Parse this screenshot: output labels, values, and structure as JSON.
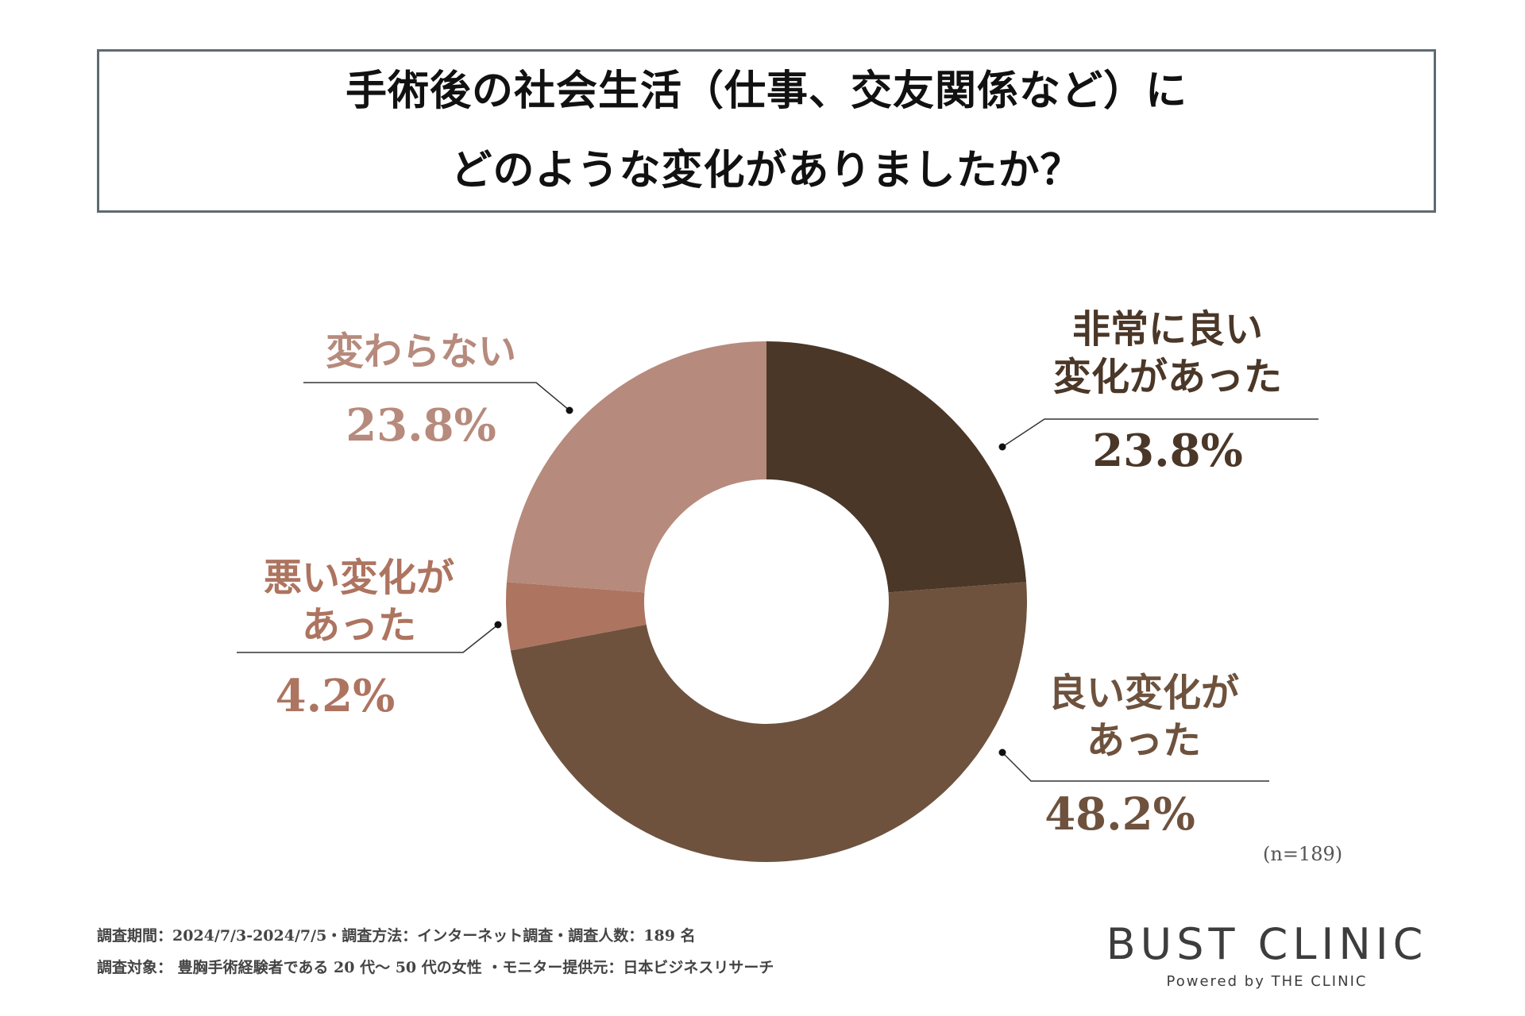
{
  "title": {
    "line1": "手術後の社会生活（仕事、交友関係など）に",
    "line2": "どのような変化がありましたか？"
  },
  "chart_data": {
    "type": "pie",
    "donut": true,
    "categories": [
      "非常に良い変化があった",
      "良い変化があった",
      "悪い変化があった",
      "変わらない"
    ],
    "values": [
      23.8,
      48.2,
      4.2,
      23.8
    ],
    "unit": "%",
    "colors": [
      "#4a3728",
      "#6e523d",
      "#ad7460",
      "#b68a7c"
    ],
    "labels": [
      {
        "name_lines": [
          "非常に良い",
          "変化があった"
        ],
        "value": "23.8%",
        "color": "#4a3728"
      },
      {
        "name_lines": [
          "良い変化が",
          "あった"
        ],
        "value": "48.2%",
        "color": "#6e523d"
      },
      {
        "name_lines": [
          "悪い変化が",
          "あった"
        ],
        "value": "4.2%",
        "color": "#ad7460"
      },
      {
        "name_lines": [
          "変わらない"
        ],
        "value": "23.8%",
        "color": "#b68a7c"
      }
    ],
    "sample_note": "(n=189)"
  },
  "footer": {
    "line1": "調査期間：2024/7/3-2024/7/5・調査方法：インターネット調査・調査人数：189 名",
    "line2": "調査対象： 豊胸手術経験者である 20 代～ 50 代の女性 ・モニター提供元：日本ビジネスリサーチ"
  },
  "brand": {
    "name": "BUST CLINIC",
    "tagline": "Powered by THE CLINIC"
  }
}
